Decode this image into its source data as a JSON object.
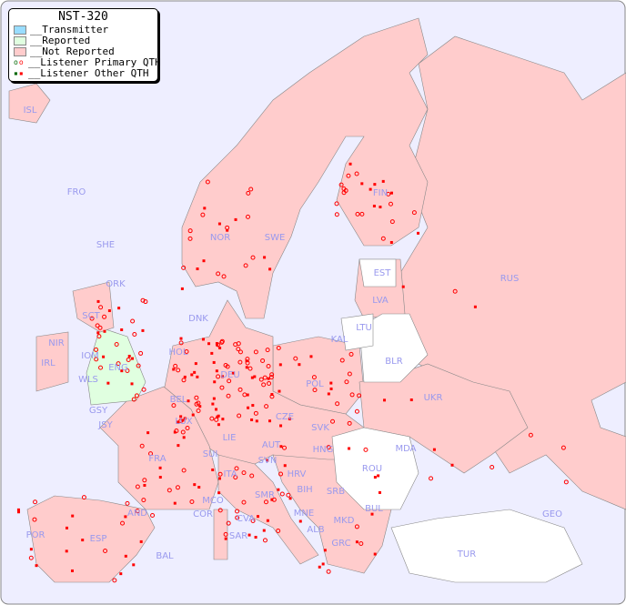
{
  "title": "NST-320",
  "legend": [
    {
      "label": "__Transmitter",
      "color": "#99ddff"
    },
    {
      "label": "__Reported",
      "color": "#e0ffe0"
    },
    {
      "label": "__Not Reported",
      "color": "#ffcccc"
    },
    {
      "label": "__Listener Primary QTH",
      "marker": "open-circle"
    },
    {
      "label": "__Listener Other QTH",
      "marker": "filled-square"
    }
  ],
  "colors": {
    "sea": "#eeeeff",
    "not_reported": "#ffcccc",
    "reported": "#e0ffe0",
    "no_data": "#ffffff",
    "listener": "#ff0000",
    "label": "#9999ee"
  },
  "countries": [
    "ISL",
    "FRO",
    "SHE",
    "ORK",
    "NOR",
    "SWE",
    "FIN",
    "EST",
    "LVA",
    "LTU",
    "RUS",
    "BLR",
    "KAL",
    "DNK",
    "HOL",
    "DEU",
    "POL",
    "UKR",
    "IRL",
    "NIR",
    "SCT",
    "IOM",
    "WLS",
    "ENG",
    "GSY",
    "JSY",
    "BEL",
    "LUX",
    "CZE",
    "SVK",
    "HNG",
    "AUT",
    "SUI",
    "LIE",
    "FRA",
    "MDA",
    "ROU",
    "SVN",
    "HRV",
    "ITA",
    "BIH",
    "SRB",
    "MCO",
    "COR",
    "SMR",
    "CVA",
    "MNE",
    "ALB",
    "MKD",
    "BUL",
    "GEO",
    "AND",
    "ESP",
    "POR",
    "SAR",
    "BAL",
    "GRC",
    "TUR"
  ]
}
